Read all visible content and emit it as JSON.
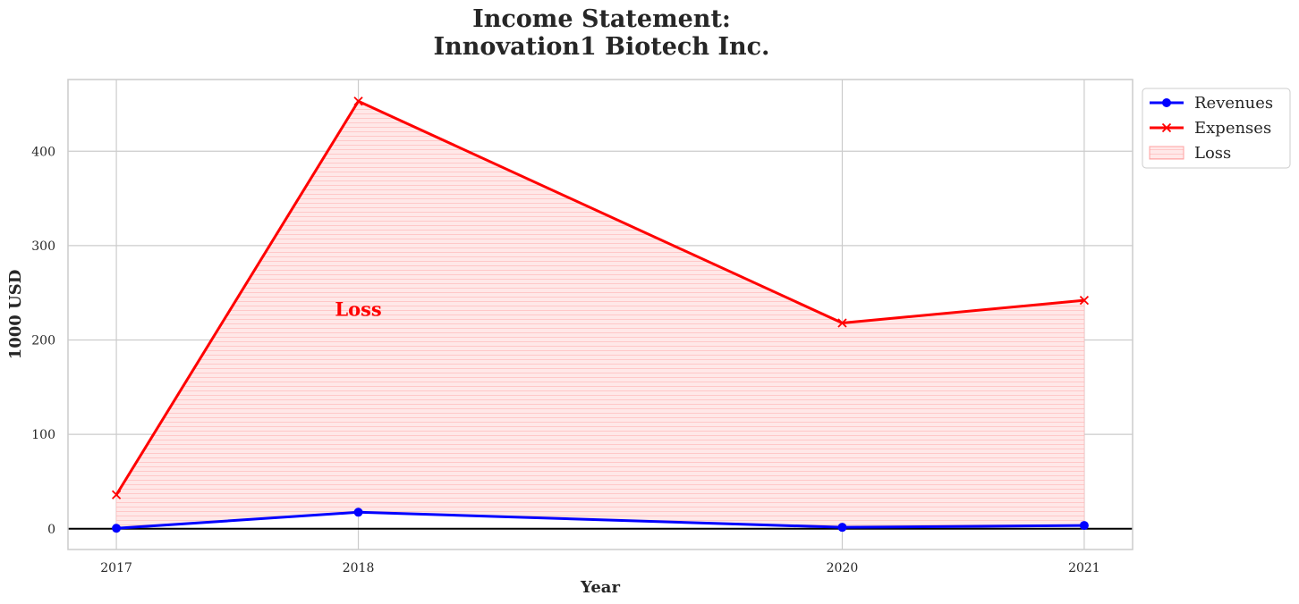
{
  "chart_data": {
    "type": "line",
    "title_line1": "Income Statement:",
    "title_line2": "Innovation1 Biotech Inc.",
    "xlabel": "Year",
    "ylabel": "1000 USD",
    "x": [
      2017,
      2018,
      2020,
      2021
    ],
    "x_tick_labels": [
      "2017",
      "2018",
      "2020",
      "2021"
    ],
    "xlim": [
      2016.8,
      2021.2
    ],
    "ylim": [
      -22,
      476
    ],
    "y_ticks": [
      0,
      100,
      200,
      300,
      400
    ],
    "y_tick_labels": [
      "0",
      "100",
      "200",
      "300",
      "400"
    ],
    "series": [
      {
        "name": "Revenues",
        "values": [
          0.5,
          17.5,
          1.5,
          3.5
        ],
        "color": "#0000ff",
        "marker": "circle"
      },
      {
        "name": "Expenses",
        "values": [
          36,
          453,
          218,
          242
        ],
        "color": "#ff0000",
        "marker": "x"
      }
    ],
    "fill": {
      "name": "Loss",
      "between": [
        "Revenues",
        "Expenses"
      ],
      "color": "#ff0000",
      "hatch": "horizontal"
    },
    "annotation": {
      "text": "Loss",
      "x": 2018,
      "y": 232,
      "color": "#ff0000"
    },
    "zero_line": true,
    "grid": true,
    "legend_position": "outside-upper-right"
  }
}
